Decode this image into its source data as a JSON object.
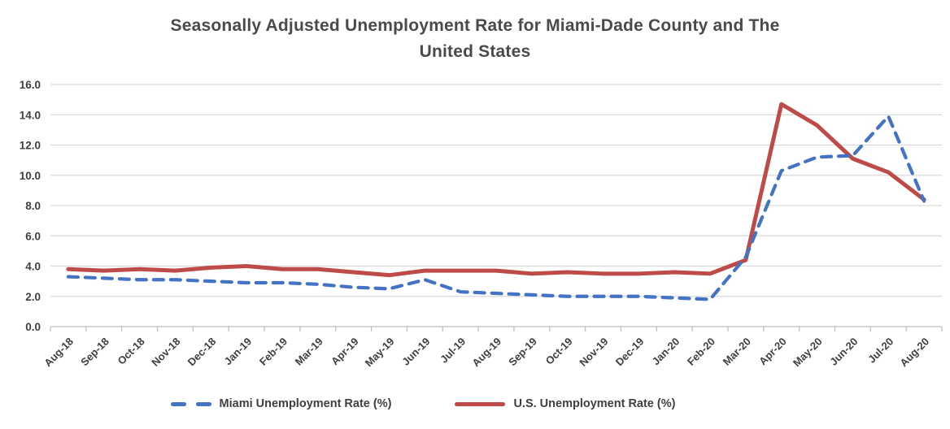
{
  "header": {
    "title_line1": "Seasonally Adjusted Unemployment Rate for Miami-Dade County and The",
    "title_line2": "United States"
  },
  "chart_data": {
    "type": "line",
    "title": "Seasonally Adjusted Unemployment Rate for Miami-Dade County and The United States",
    "categories": [
      "Aug-18",
      "Sep-18",
      "Oct-18",
      "Nov-18",
      "Dec-18",
      "Jan-19",
      "Feb-19",
      "Mar-19",
      "Apr-19",
      "May-19",
      "Jun-19",
      "Jul-19",
      "Aug-19",
      "Sep-19",
      "Oct-19",
      "Nov-19",
      "Dec-19",
      "Jan-20",
      "Feb-20",
      "Mar-20",
      "Apr-20",
      "May-20",
      "Jun-20",
      "Jul-20",
      "Aug-20"
    ],
    "series": [
      {
        "name": "Miami Unemployment Rate (%)",
        "color": "#4472C4",
        "line_style": "dashed",
        "values": [
          3.3,
          3.2,
          3.1,
          3.1,
          3.0,
          2.9,
          2.9,
          2.8,
          2.6,
          2.5,
          3.1,
          2.3,
          2.2,
          2.1,
          2.0,
          2.0,
          2.0,
          1.9,
          1.8,
          4.6,
          10.3,
          11.2,
          11.3,
          13.9,
          8.3
        ]
      },
      {
        "name": "U.S. Unemployment Rate (%)",
        "color": "#BE4B48",
        "line_style": "solid",
        "values": [
          3.8,
          3.7,
          3.8,
          3.7,
          3.9,
          4.0,
          3.8,
          3.8,
          3.6,
          3.4,
          3.7,
          3.7,
          3.7,
          3.5,
          3.6,
          3.5,
          3.5,
          3.6,
          3.5,
          4.4,
          14.7,
          13.3,
          11.1,
          10.2,
          8.4
        ]
      }
    ],
    "ylim": [
      0,
      16
    ],
    "ytick_step": 2,
    "ytick_labels": [
      "0.0",
      "2.0",
      "4.0",
      "6.0",
      "8.0",
      "10.0",
      "12.0",
      "14.0",
      "16.0"
    ],
    "grid": "horizontal",
    "gridline_color": "#D9D9D9",
    "axis_line_color": "#BFBFBF",
    "tick_label_color": "#3F3F3F",
    "legend_position": "bottom"
  }
}
